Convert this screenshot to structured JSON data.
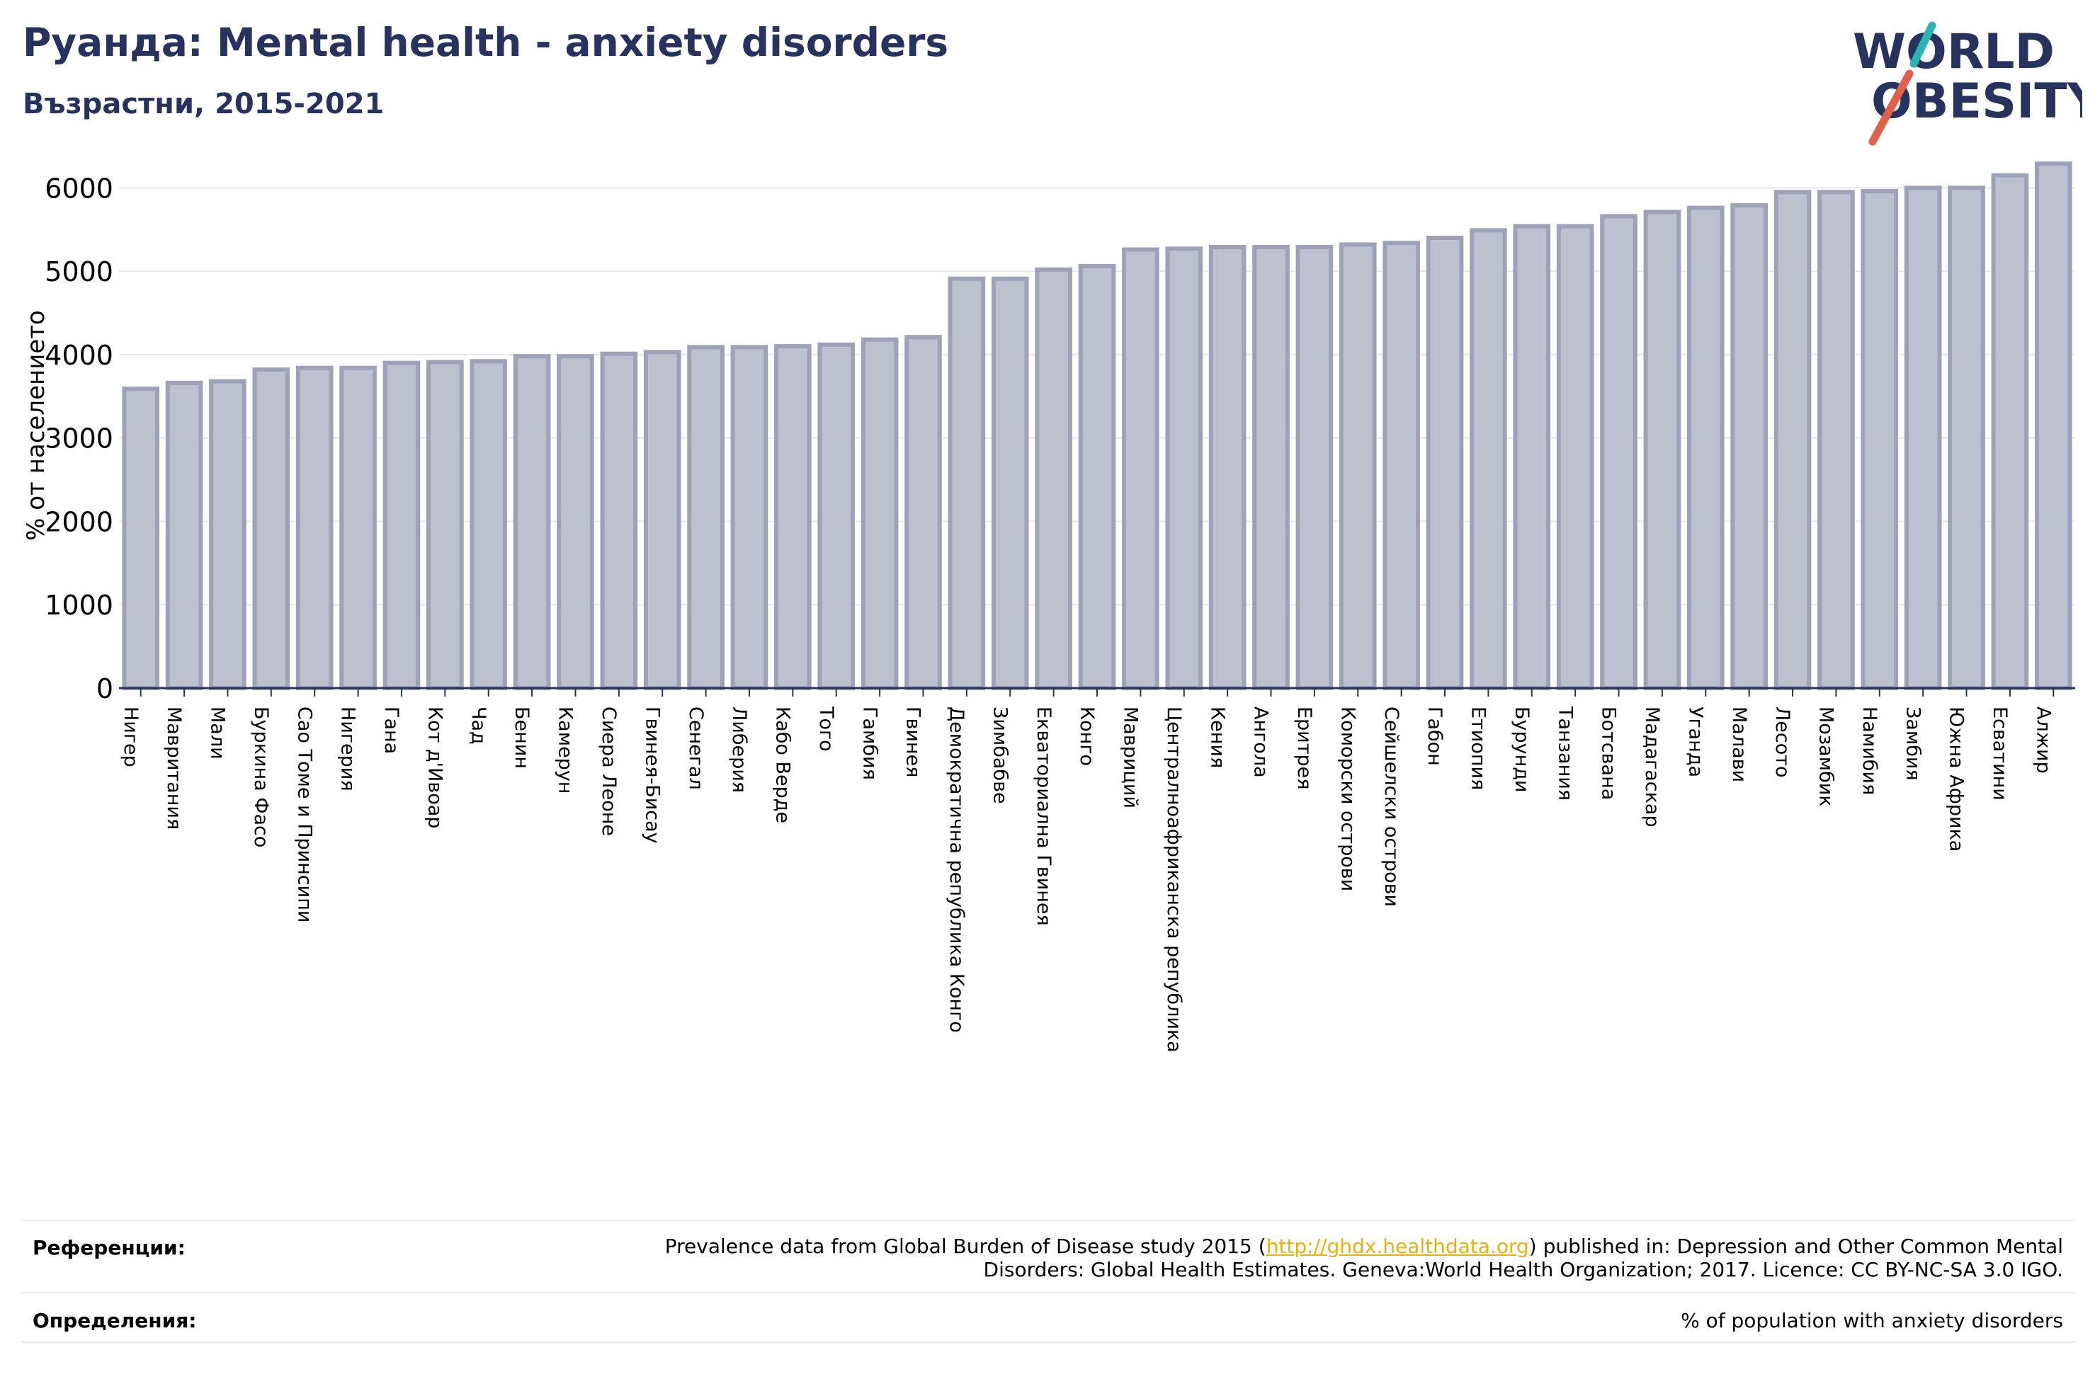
{
  "header": {
    "title": "Руанда: Mental health - anxiety disorders",
    "subtitle": "Възрастни, 2015-2021"
  },
  "logo": {
    "line1": "WORLD",
    "line2": "OBESITY",
    "colors": {
      "text": "#26335e",
      "slash_top": "#2bb5b0",
      "slash_bottom": "#e0604a"
    }
  },
  "chart_data": {
    "type": "bar",
    "ylabel": "% от населението",
    "ylim": [
      0,
      6300
    ],
    "yticks": [
      0,
      1000,
      2000,
      3000,
      4000,
      5000,
      6000
    ],
    "grid": true,
    "bar_color": "#bcc0cf",
    "bar_edge_color": "#9da2b8",
    "categories": [
      "Нигер",
      "Мавритания",
      "Мали",
      "Буркина Фасо",
      "Сао Томе и Принсипи",
      "Нигерия",
      "Гана",
      "Кот д'Ивоар",
      "Чад",
      "Бенин",
      "Камерун",
      "Сиера Леоне",
      "Гвинея-Бисау",
      "Сенегал",
      "Либерия",
      "Кабо Верде",
      "Того",
      "Гамбия",
      "Гвинея",
      "Демократична република Конго",
      "Зимбабве",
      "Екваториална Гвинея",
      "Конго",
      "Мавриций",
      "Централноафриканска република",
      "Кения",
      "Ангола",
      "Еритрея",
      "Коморски острови",
      "Сейшелски острови",
      "Габон",
      "Етиопия",
      "Бурунди",
      "Танзания",
      "Ботсвана",
      "Мадагаскар",
      "Уганда",
      "Малави",
      "Лесото",
      "Мозамбик",
      "Намибия",
      "Замбия",
      "Южна Африка",
      "Есватини",
      "Алжир"
    ],
    "values": [
      3590,
      3660,
      3680,
      3820,
      3840,
      3840,
      3900,
      3910,
      3920,
      3980,
      3980,
      4010,
      4030,
      4090,
      4090,
      4100,
      4120,
      4180,
      4210,
      4910,
      4910,
      5020,
      5060,
      5260,
      5270,
      5290,
      5290,
      5290,
      5320,
      5340,
      5400,
      5490,
      5540,
      5540,
      5660,
      5710,
      5760,
      5790,
      5950,
      5950,
      5960,
      6000,
      6000,
      6150,
      6290
    ]
  },
  "footer": {
    "references_label": "Референции:",
    "references_pre": "Prevalence data from Global Burden of Disease study 2015 (",
    "references_link": "http://ghdx.healthdata.org",
    "references_post": ") published in: Depression and Other Common Mental",
    "references_line2": "Disorders: Global Health Estimates. Geneva:World Health Organization; 2017. Licence: CC BY-NC-SA 3.0 IGO.",
    "definitions_label": "Определения:",
    "definitions_text": "% of population with anxiety disorders"
  }
}
